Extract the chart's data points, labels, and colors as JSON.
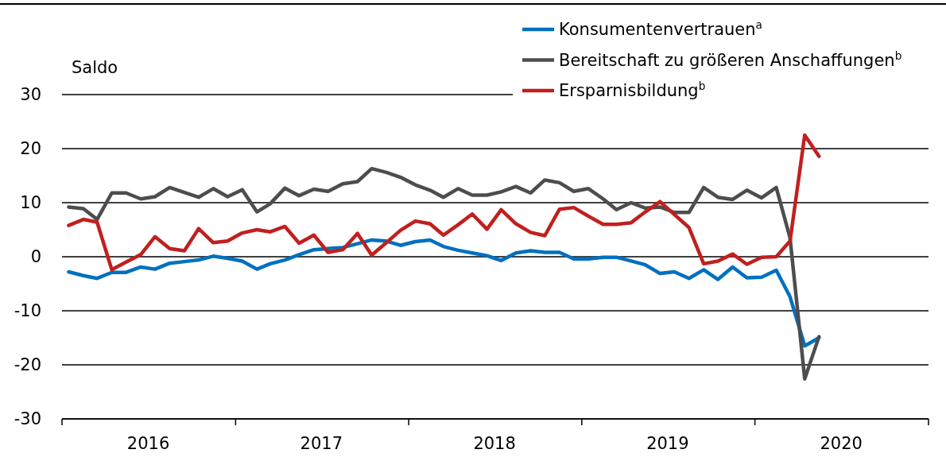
{
  "chart_data": {
    "type": "line",
    "ylabel": "Saldo",
    "x": [
      "2016-01-15",
      "2016-02-15",
      "2016-03-15",
      "2016-04-15",
      "2016-05-15",
      "2016-06-15",
      "2016-07-15",
      "2016-08-15",
      "2016-09-15",
      "2016-10-15",
      "2016-11-15",
      "2016-12-15",
      "2017-01-15",
      "2017-02-15",
      "2017-03-15",
      "2017-04-15",
      "2017-05-15",
      "2017-06-15",
      "2017-07-15",
      "2017-08-15",
      "2017-09-15",
      "2017-10-15",
      "2017-11-15",
      "2017-12-15",
      "2018-01-15",
      "2018-02-15",
      "2018-03-15",
      "2018-04-15",
      "2018-05-15",
      "2018-06-15",
      "2018-07-15",
      "2018-08-15",
      "2018-09-15",
      "2018-10-15",
      "2018-11-15",
      "2018-12-15",
      "2019-01-15",
      "2019-02-15",
      "2019-03-15",
      "2019-04-15",
      "2019-05-15",
      "2019-06-15",
      "2019-07-15",
      "2019-08-15",
      "2019-09-15",
      "2019-10-15",
      "2019-11-15",
      "2019-12-15",
      "2020-01-15",
      "2020-02-15",
      "2020-03-15",
      "2020-04-15",
      "2020-05-15"
    ],
    "series": [
      {
        "name": "Konsumentenvertrauen$^{a}$",
        "color": "#0070c0",
        "values": [
          -2.8,
          -3.5,
          -4.0,
          -2.9,
          -2.9,
          -1.9,
          -2.3,
          -1.2,
          -0.9,
          -0.6,
          0.1,
          -0.3,
          -0.8,
          -2.3,
          -1.3,
          -0.6,
          0.4,
          1.3,
          1.5,
          1.7,
          2.4,
          3.1,
          2.9,
          2.1,
          2.8,
          3.1,
          1.9,
          1.2,
          0.7,
          0.2,
          -0.7,
          0.7,
          1.1,
          0.8,
          0.8,
          -0.4,
          -0.4,
          -0.1,
          -0.1,
          -0.8,
          -1.5,
          -3.1,
          -2.8,
          -4.0,
          -2.4,
          -4.2,
          -1.9,
          -3.9,
          -3.8,
          -2.5,
          -7.4,
          -16.5,
          -15.0
        ]
      },
      {
        "name": "Bereitschaft zu größeren Anschaffungen$^{b}$",
        "color": "#4d4d4d",
        "values": [
          9.2,
          8.9,
          6.9,
          11.8,
          11.8,
          10.7,
          11.1,
          12.8,
          11.9,
          11.0,
          12.6,
          11.1,
          12.4,
          8.3,
          9.8,
          12.7,
          11.3,
          12.5,
          12.1,
          13.5,
          13.9,
          16.3,
          15.6,
          14.7,
          13.3,
          12.3,
          11.0,
          12.6,
          11.4,
          11.4,
          12.0,
          13.0,
          11.8,
          14.2,
          13.7,
          12.1,
          12.6,
          10.7,
          8.7,
          10.0,
          9.0,
          9.2,
          8.2,
          8.2,
          12.8,
          11.0,
          10.6,
          12.3,
          10.9,
          12.8,
          3.5,
          -22.6,
          -14.8
        ]
      },
      {
        "name": "Ersparnisbildung$^{b}$",
        "color": "#c0201f",
        "values": [
          5.8,
          6.9,
          6.4,
          -2.4,
          -1.0,
          0.4,
          3.7,
          1.5,
          1.1,
          5.2,
          2.6,
          2.9,
          4.4,
          5.0,
          4.6,
          5.6,
          2.5,
          4.0,
          0.8,
          1.3,
          4.3,
          0.3,
          2.6,
          4.9,
          6.6,
          6.1,
          4.0,
          5.9,
          7.9,
          5.1,
          8.7,
          6.1,
          4.5,
          3.9,
          8.8,
          9.1,
          7.5,
          6.0,
          6.0,
          6.3,
          8.3,
          10.2,
          7.8,
          5.4,
          -1.3,
          -0.8,
          0.5,
          -1.4,
          -0.1,
          0.0,
          2.9,
          22.5,
          18.6
        ]
      }
    ],
    "xlim": [
      "2016-01-01",
      "2021-01-01"
    ],
    "xticks": [
      {
        "value": "2016-01-01",
        "label": null
      },
      {
        "value": "2016-07-01",
        "label": "2016"
      },
      {
        "value": "2017-01-01",
        "label": null
      },
      {
        "value": "2017-07-01",
        "label": "2017"
      },
      {
        "value": "2018-01-01",
        "label": null
      },
      {
        "value": "2018-07-01",
        "label": "2018"
      },
      {
        "value": "2019-01-01",
        "label": null
      },
      {
        "value": "2019-07-01",
        "label": "2019"
      },
      {
        "value": "2020-01-01",
        "label": null
      },
      {
        "value": "2020-07-01",
        "label": "2020"
      },
      {
        "value": "2021-01-01",
        "label": null
      }
    ],
    "ylim": [
      -30,
      30
    ],
    "yticks": [
      -30,
      -20,
      -10,
      0,
      10,
      20,
      30
    ],
    "grid": "y",
    "legend": "top right",
    "marker": "none",
    "line_style": "solid"
  }
}
